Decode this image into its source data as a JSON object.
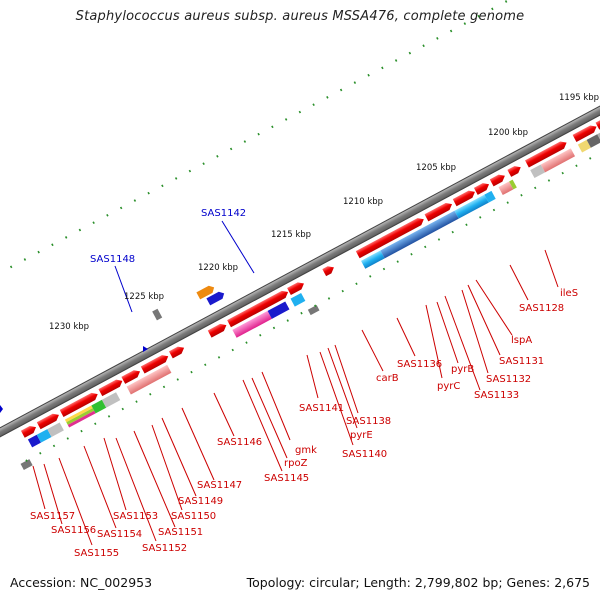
{
  "title": "Staphylococcus aureus subsp. aureus MSSA476, complete genome",
  "footer": {
    "accession": "Accession: NC_002953",
    "topology": "Topology: circular; Length: 2,799,802 bp; Genes: 2,675"
  },
  "scale_labels": [
    "1195 kbp",
    "1200 kbp",
    "1205 kbp",
    "1210 kbp",
    "1215 kbp",
    "1220 kbp",
    "1225 kbp",
    "1230 kbp"
  ],
  "top_gene_labels": [
    "SAS1142",
    "SAS1148"
  ],
  "gene_labels": [
    "ileS",
    "SAS1128",
    "lspA",
    "SAS1131",
    "SAS1132",
    "SAS1133",
    "pyrB",
    "pyrC",
    "SAS1136",
    "carB",
    "SAS1138",
    "pyrE",
    "SAS1140",
    "SAS1141",
    "gmk",
    "rpoZ",
    "SAS1145",
    "SAS1146",
    "SAS1147",
    "SAS1149",
    "SAS1150",
    "SAS1151",
    "SAS1152",
    "SAS1153",
    "SAS1154",
    "SAS1155",
    "SAS1156",
    "SAS1157"
  ],
  "colors": {
    "backbone": "#777777",
    "forward_gene": "#ee0000",
    "scale_tick": "#228822",
    "label_red": "#cc0000",
    "label_blue": "#0000cc"
  }
}
